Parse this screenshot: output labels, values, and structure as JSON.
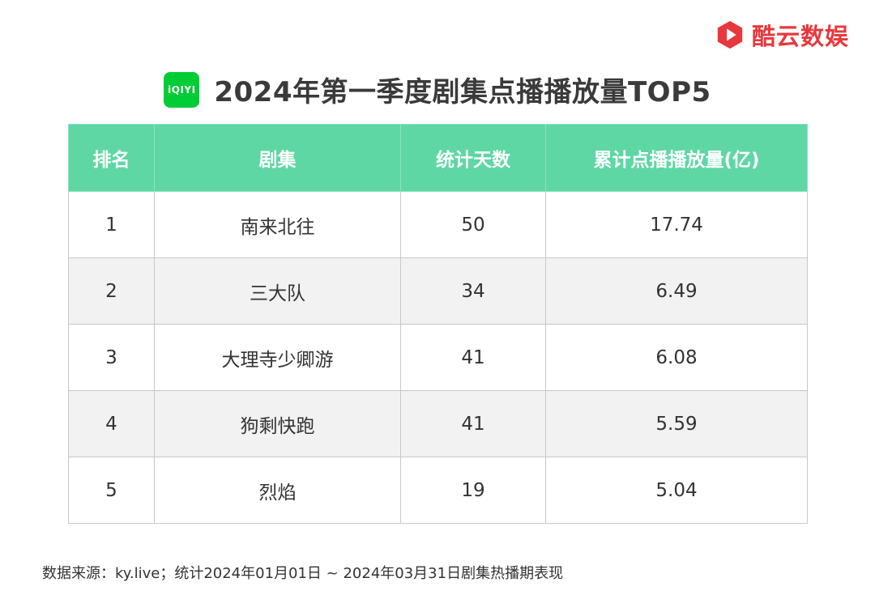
{
  "brand": {
    "name": "酷云数娱",
    "color": "#e8383d"
  },
  "header": {
    "platform_badge": "iQIYI",
    "title": "2024年第一季度剧集点播播放量TOP5"
  },
  "table": {
    "columns": [
      "排名",
      "剧集",
      "统计天数",
      "累计点播播放量(亿)"
    ],
    "rows": [
      {
        "rank": "1",
        "show": "南来北往",
        "days": "50",
        "plays": "17.74"
      },
      {
        "rank": "2",
        "show": "三大队",
        "days": "34",
        "plays": "6.49"
      },
      {
        "rank": "3",
        "show": "大理寺少卿游",
        "days": "41",
        "plays": "6.08"
      },
      {
        "rank": "4",
        "show": "狗剩快跑",
        "days": "41",
        "plays": "5.59"
      },
      {
        "rank": "5",
        "show": "烈焰",
        "days": "19",
        "plays": "5.04"
      }
    ],
    "header_color": "#5ed7a4"
  },
  "footer": {
    "note": "数据来源：ky.live；统计2024年01月01日 ~ 2024年03月31日剧集热播期表现"
  }
}
